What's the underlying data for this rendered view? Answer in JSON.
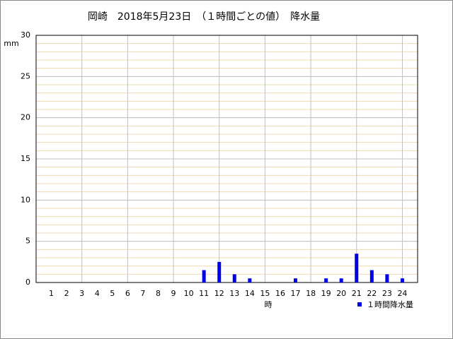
{
  "chart_data": {
    "type": "bar",
    "title": "岡崎　2018年5月23日　（１時間ごとの値）　降水量",
    "y_label": "mm",
    "x_label": "時",
    "categories": [
      "1",
      "2",
      "3",
      "4",
      "5",
      "6",
      "7",
      "8",
      "9",
      "10",
      "11",
      "12",
      "13",
      "14",
      "15",
      "16",
      "17",
      "18",
      "19",
      "20",
      "21",
      "22",
      "23",
      "24"
    ],
    "series": [
      {
        "name": "１時間降水量",
        "color": "#0000e6",
        "values": [
          0,
          0,
          0,
          0,
          0,
          0,
          0,
          0,
          0,
          0,
          1.5,
          2.5,
          1.0,
          0.5,
          0,
          0,
          0.5,
          0,
          0.5,
          0.5,
          3.5,
          1.5,
          1.0,
          0.5
        ]
      }
    ],
    "ylim": [
      0,
      30
    ],
    "yticks": [
      0,
      5,
      10,
      15,
      20,
      25,
      30
    ],
    "grid": true,
    "minor_grid": true,
    "legend": "lower right"
  }
}
